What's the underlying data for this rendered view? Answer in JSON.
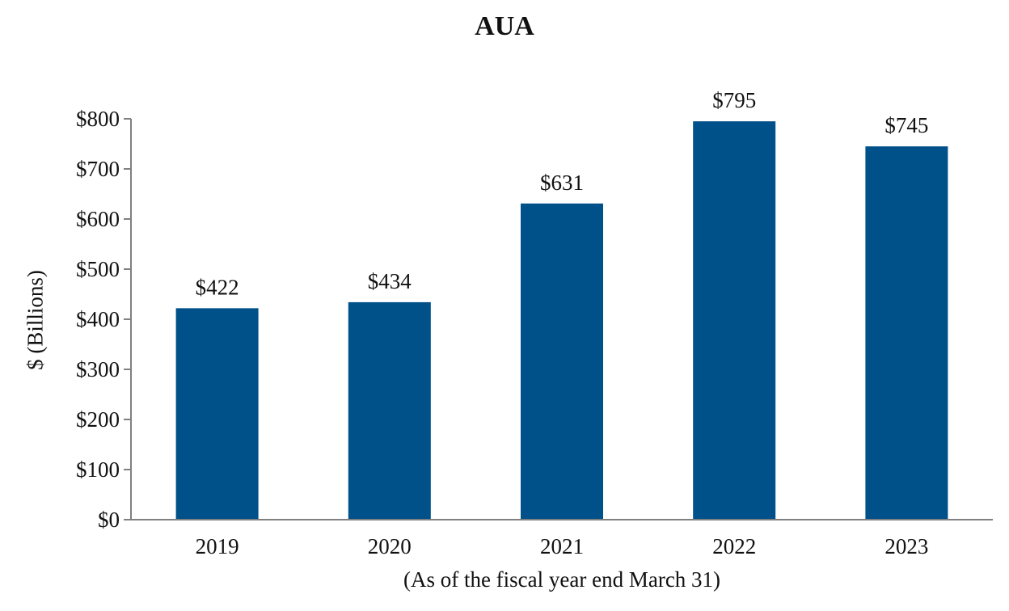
{
  "chart_data": {
    "type": "bar",
    "title": "AUA",
    "xlabel": "(As of the fiscal year end March 31)",
    "ylabel": "$ (Billions)",
    "categories": [
      "2019",
      "2020",
      "2021",
      "2022",
      "2023"
    ],
    "values": [
      422,
      434,
      631,
      795,
      745
    ],
    "value_labels": [
      "$422",
      "$434",
      "$631",
      "$795",
      "$745"
    ],
    "yticks": [
      0,
      100,
      200,
      300,
      400,
      500,
      600,
      700,
      800
    ],
    "ytick_labels": [
      "$0",
      "$100",
      "$200",
      "$300",
      "$400",
      "$500",
      "$600",
      "$700",
      "$800"
    ],
    "ylim": [
      0,
      800
    ],
    "grid": false,
    "bar_color": "#00508A",
    "axis_color": "#808080"
  }
}
